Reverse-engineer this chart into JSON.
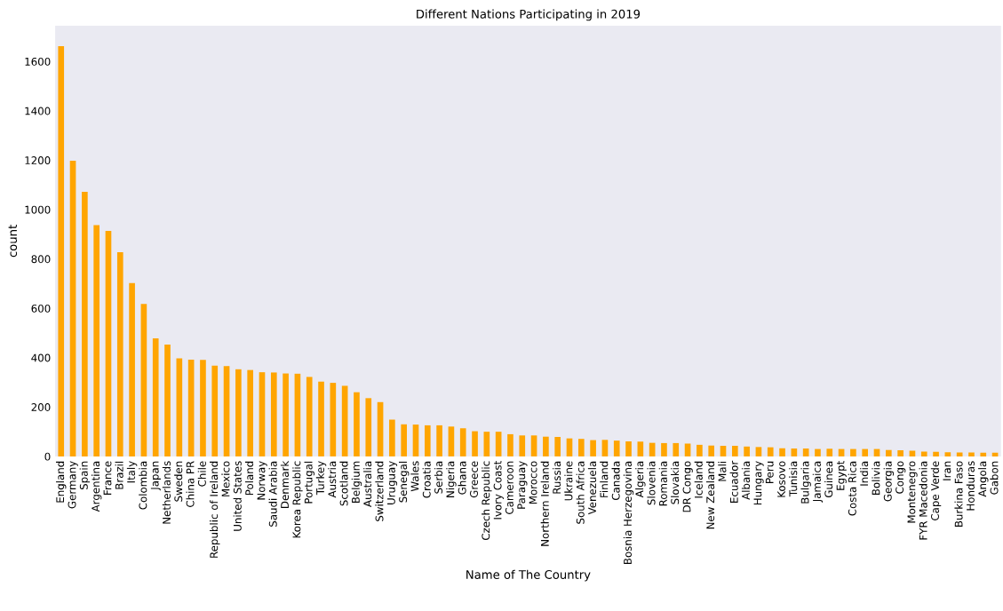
{
  "chart_data": {
    "type": "bar",
    "title": "Different Nations Participating in 2019",
    "xlabel": "Name of The Country",
    "ylabel": "count",
    "categories": [
      "England",
      "Germany",
      "Spain",
      "Argentina",
      "France",
      "Brazil",
      "Italy",
      "Colombia",
      "Japan",
      "Netherlands",
      "Sweden",
      "China PR",
      "Chile",
      "Republic of Ireland",
      "Mexico",
      "United States",
      "Poland",
      "Norway",
      "Saudi Arabia",
      "Denmark",
      "Korea Republic",
      "Portugal",
      "Turkey",
      "Austria",
      "Scotland",
      "Belgium",
      "Australia",
      "Switzerland",
      "Uruguay",
      "Senegal",
      "Wales",
      "Croatia",
      "Serbia",
      "Nigeria",
      "Ghana",
      "Greece",
      "Czech Republic",
      "Ivory Coast",
      "Cameroon",
      "Paraguay",
      "Morocco",
      "Northern Ireland",
      "Russia",
      "Ukraine",
      "South Africa",
      "Venezuela",
      "Finland",
      "Canada",
      "Bosnia Herzegovina",
      "Algeria",
      "Slovenia",
      "Romania",
      "Slovakia",
      "DR Congo",
      "Iceland",
      "New Zealand",
      "Mali",
      "Ecuador",
      "Albania",
      "Hungary",
      "Peru",
      "Kosovo",
      "Tunisia",
      "Bulgaria",
      "Jamaica",
      "Guinea",
      "Egypt",
      "Costa Rica",
      "India",
      "Bolivia",
      "Georgia",
      "Congo",
      "Montenegro",
      "FYR Macedonia",
      "Cape Verde",
      "Iran",
      "Burkina Faso",
      "Honduras",
      "Angola",
      "Gabon"
    ],
    "values": [
      1662,
      1198,
      1072,
      937,
      914,
      827,
      702,
      618,
      478,
      453,
      397,
      392,
      391,
      368,
      366,
      353,
      350,
      341,
      340,
      336,
      335,
      322,
      303,
      298,
      286,
      260,
      236,
      220,
      149,
      130,
      129,
      126,
      126,
      121,
      114,
      102,
      100,
      100,
      90,
      85,
      85,
      80,
      79,
      73,
      71,
      66,
      67,
      64,
      61,
      60,
      55,
      54,
      54,
      52,
      47,
      44,
      43,
      43,
      40,
      38,
      37,
      33,
      32,
      32,
      30,
      31,
      30,
      30,
      30,
      30,
      26,
      25,
      23,
      20,
      19,
      17,
      16,
      16,
      15,
      15
    ],
    "color": "#ffa500",
    "ylim": [
      0,
      1745
    ],
    "yticks": [
      0,
      200,
      400,
      600,
      800,
      1000,
      1200,
      1400,
      1600
    ],
    "grid": false
  }
}
